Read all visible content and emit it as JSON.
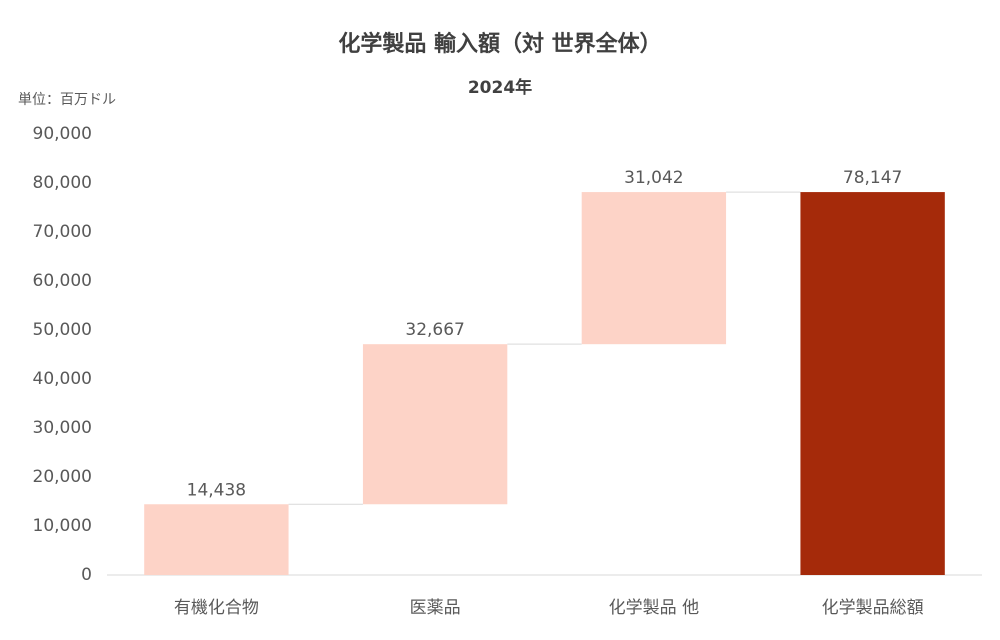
{
  "chart_data": {
    "type": "waterfall",
    "title": "化学製品 輸入額（対 世界全体）",
    "subtitle": "2024年",
    "unit_label": "単位：百万ドル",
    "categories": [
      "有機化合物",
      "医薬品",
      "化学製品 他",
      "化学製品総額"
    ],
    "values": [
      14438,
      32667,
      31042,
      78147
    ],
    "value_labels": [
      "14,438",
      "32,667",
      "31,042",
      "78,147"
    ],
    "totals": [
      false,
      false,
      false,
      true
    ],
    "colors": [
      "#fdd3c7",
      "#fdd3c7",
      "#fdd3c7",
      "#a52a0a"
    ],
    "ylim": [
      0,
      90000
    ],
    "yticks": [
      0,
      {
        "value": 10000,
        "label": "10,000"
      },
      {
        "value": 20000,
        "label": "20,000"
      },
      {
        "value": 30000,
        "label": "30,000"
      },
      {
        "value": 40000,
        "label": "40,000"
      },
      {
        "value": 50000,
        "label": "50,000"
      },
      {
        "value": 60000,
        "label": "60,000"
      },
      {
        "value": 70000,
        "label": "70,000"
      },
      {
        "value": 80000,
        "label": "80,000"
      },
      {
        "value": 90000,
        "label": "90,000"
      }
    ],
    "grid": false
  }
}
